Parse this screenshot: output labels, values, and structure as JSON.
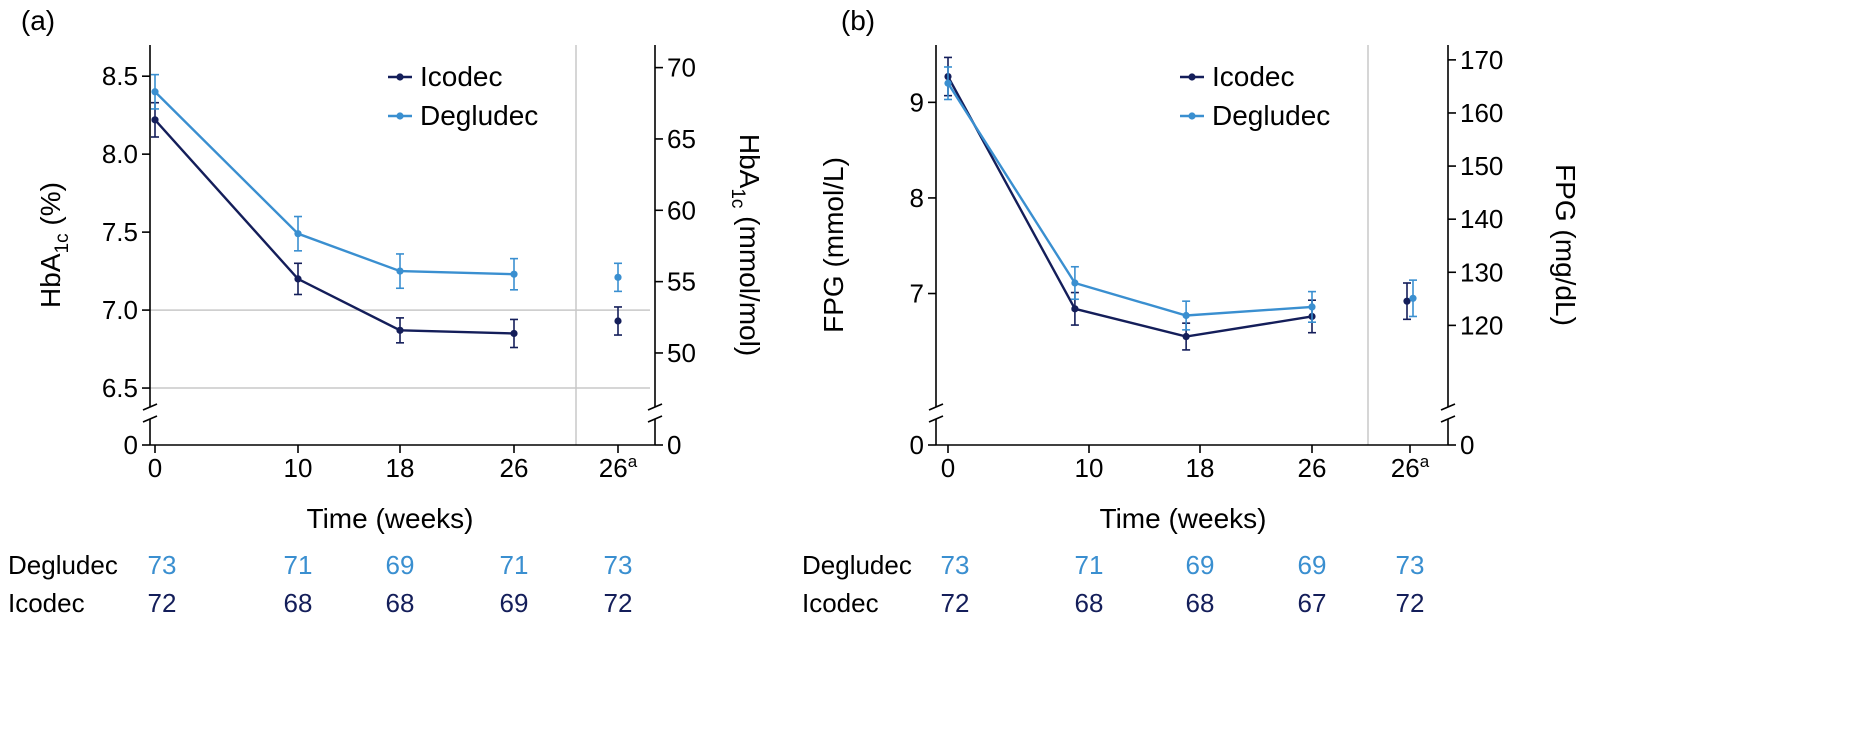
{
  "figure": {
    "colors": {
      "icodec": "#141e5a",
      "degludec": "#3a8fd0",
      "axis": "#000000",
      "grid": "#c8c8c8"
    }
  },
  "chart_data": [
    {
      "type": "line",
      "panel_label": "(a)",
      "xlabel": "Time (weeks)",
      "x_categories": [
        "0",
        "10",
        "18",
        "26",
        "26"
      ],
      "x_superscripts": [
        "",
        "",
        "",
        "",
        "a"
      ],
      "y_left": {
        "label_main": "HbA",
        "label_sub": "1c",
        "label_unit": " (%)",
        "ticks": [
          "6.5",
          "7.0",
          "7.5",
          "8.0",
          "8.5"
        ],
        "zero_tick": "0",
        "range": [
          6.5,
          8.5
        ],
        "display_range": [
          6.34,
          8.7
        ]
      },
      "y_right": {
        "label_main": "HbA",
        "label_sub": "1c",
        "label_unit": " (mmol/mol)",
        "ticks": [
          "50",
          "55",
          "60",
          "65",
          "70"
        ],
        "zero_tick": "0",
        "range": [
          48,
          70
        ]
      },
      "hlines": [
        6.5,
        7.0
      ],
      "separator_after_category": 3,
      "legend": {
        "position": "top-center",
        "entries": [
          "Icodec",
          "Degludec"
        ]
      },
      "series": [
        {
          "name": "Icodec",
          "color_key": "icodec",
          "x": [
            0,
            10,
            18,
            26
          ],
          "values": [
            8.22,
            7.2,
            6.87,
            6.85
          ],
          "err": [
            0.11,
            0.1,
            0.08,
            0.09
          ],
          "end_value": 6.93,
          "end_err": 0.09
        },
        {
          "name": "Degludec",
          "color_key": "degludec",
          "x": [
            0,
            10,
            18,
            26
          ],
          "values": [
            8.4,
            7.49,
            7.25,
            7.23
          ],
          "err": [
            0.11,
            0.11,
            0.11,
            0.1
          ],
          "end_value": 7.21,
          "end_err": 0.09
        }
      ],
      "counts": [
        {
          "name": "Degludec",
          "color_key": "degludec",
          "values": [
            "73",
            "71",
            "69",
            "71",
            "73"
          ]
        },
        {
          "name": "Icodec",
          "color_key": "icodec",
          "values": [
            "72",
            "68",
            "68",
            "69",
            "72"
          ]
        }
      ]
    },
    {
      "type": "line",
      "panel_label": "(b)",
      "xlabel": "Time (weeks)",
      "x_categories": [
        "0",
        "10",
        "18",
        "26",
        "26"
      ],
      "x_superscripts": [
        "",
        "",
        "",
        "",
        "a"
      ],
      "y_left": {
        "label_main": "FPG (mmol/L)",
        "label_sub": "",
        "label_unit": "",
        "ticks": [
          "7",
          "8",
          "9"
        ],
        "zero_tick": "0",
        "range": [
          6.5,
          9.5
        ],
        "display_range": [
          5.75,
          9.6
        ]
      },
      "y_right": {
        "label_main": "FPG (mg/dL)",
        "label_sub": "",
        "label_unit": "",
        "ticks": [
          "120",
          "130",
          "140",
          "150",
          "160",
          "170"
        ],
        "zero_tick": "0",
        "range": [
          110,
          170
        ]
      },
      "hlines": [],
      "separator_after_category": 3,
      "legend": {
        "position": "top-center",
        "entries": [
          "Icodec",
          "Degludec"
        ]
      },
      "series": [
        {
          "name": "Icodec",
          "color_key": "icodec",
          "x": [
            0,
            9,
            17,
            26
          ],
          "values": [
            9.27,
            6.84,
            6.55,
            6.76
          ],
          "err": [
            0.2,
            0.17,
            0.14,
            0.17
          ],
          "end_value": 6.92,
          "end_err": 0.19
        },
        {
          "name": "Degludec",
          "color_key": "degludec",
          "x": [
            0,
            9,
            17,
            26
          ],
          "values": [
            9.2,
            7.11,
            6.77,
            6.86
          ],
          "err": [
            0.17,
            0.17,
            0.15,
            0.16
          ],
          "end_value": 6.95,
          "end_err": 0.19
        }
      ],
      "counts": [
        {
          "name": "Degludec",
          "color_key": "degludec",
          "values": [
            "73",
            "71",
            "69",
            "69",
            "73"
          ]
        },
        {
          "name": "Icodec",
          "color_key": "icodec",
          "values": [
            "72",
            "68",
            "68",
            "67",
            "72"
          ]
        }
      ]
    }
  ]
}
